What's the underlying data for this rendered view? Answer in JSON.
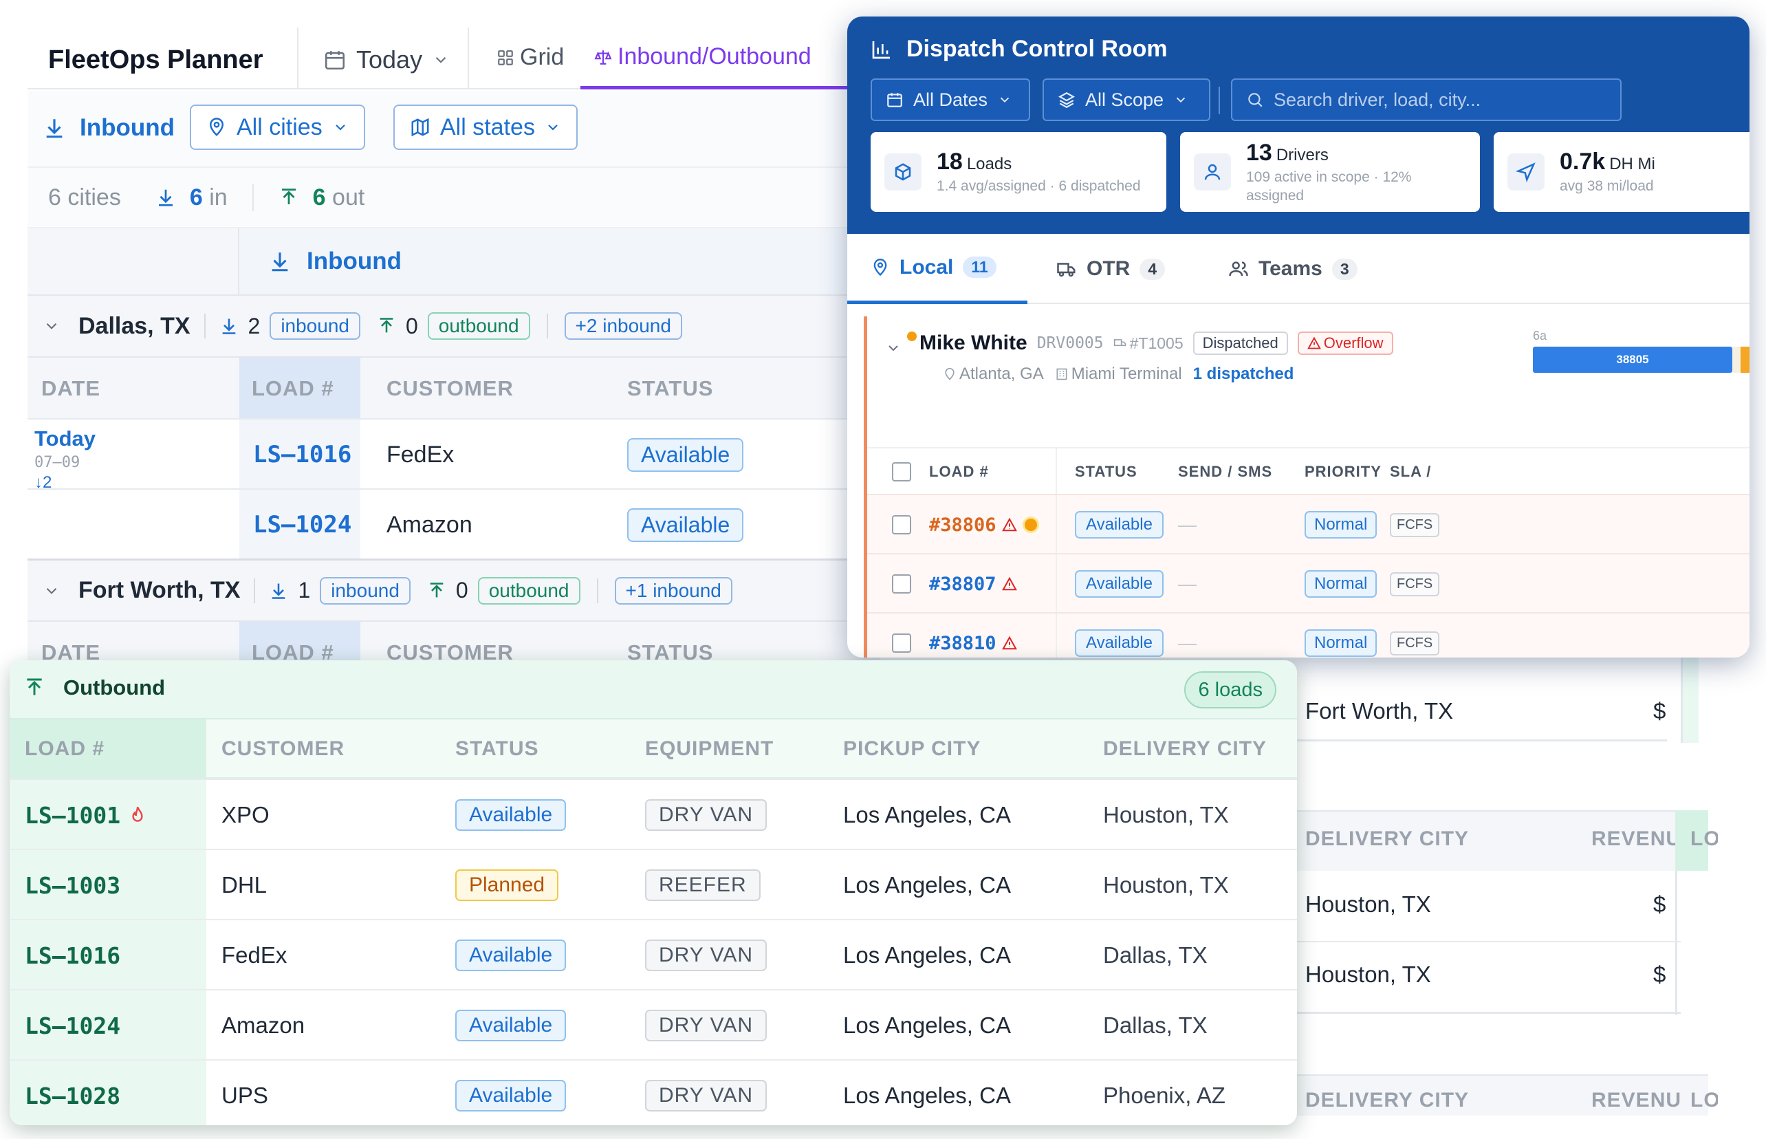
{
  "planner": {
    "title": "FleetOps Planner",
    "today_label": "Today",
    "grid_label": "Grid",
    "io_label": "Inbound/Outbound",
    "inbound_header": "Inbound",
    "filters": {
      "cities": "All cities",
      "states": "All states"
    },
    "summary": {
      "cities": "6 cities",
      "in_count": "6",
      "in_word": "in",
      "out_count": "6",
      "out_word": "out"
    },
    "band_label": "Inbound",
    "groups": [
      {
        "city": "Dallas, TX",
        "in_count": "2",
        "in_word": "inbound",
        "out_count": "0",
        "out_word": "outbound",
        "extra": "+2 inbound"
      },
      {
        "city": "Fort Worth, TX",
        "in_count": "1",
        "in_word": "inbound",
        "out_count": "0",
        "out_word": "outbound",
        "extra": "+1 inbound"
      }
    ],
    "columns": {
      "date": "DATE",
      "load": "LOAD #",
      "customer": "CUSTOMER",
      "status": "STATUS"
    },
    "date_cell": {
      "label": "Today",
      "date": "07–09",
      "count": "↓2"
    },
    "rows": [
      {
        "load": "LS–1016",
        "customer": "FedEx",
        "status": "Available"
      },
      {
        "load": "LS–1024",
        "customer": "Amazon",
        "status": "Available"
      }
    ],
    "right_partial": {
      "fort_worth": "Fort Worth, TX",
      "dollar": "$",
      "delivery_header": "DELIVERY CITY",
      "revenue_header": "REVENU",
      "lo_header": "LOA",
      "lo_header2": "LO",
      "houston1": "Houston, TX",
      "houston2": "Houston, TX"
    }
  },
  "dispatch": {
    "title": "Dispatch Control Room",
    "filters": {
      "dates": "All Dates",
      "scope": "All Scope",
      "search_placeholder": "Search driver, load, city..."
    },
    "stats": [
      {
        "value": "18",
        "unit": "Loads",
        "sub": "1.4 avg/assigned · 6 dispatched"
      },
      {
        "value": "13",
        "unit": "Drivers",
        "sub": "109 active in scope · 12% assigned"
      },
      {
        "value": "0.7k",
        "unit": "DH Mi",
        "sub": "avg 38 mi/load"
      }
    ],
    "tabs": [
      {
        "label": "Local",
        "count": "11"
      },
      {
        "label": "OTR",
        "count": "4"
      },
      {
        "label": "Teams",
        "count": "3"
      }
    ],
    "driver": {
      "name": "Mike White",
      "id": "DRV0005",
      "truck": "#T1005",
      "status_tag": "Dispatched",
      "overflow_tag": "Overflow",
      "origin": "Atlanta, GA",
      "terminal": "Miami Terminal",
      "dispatched": "1 dispatched",
      "timeline_start": "6a",
      "bar_label": "38805"
    },
    "columns": {
      "load": "LOAD #",
      "status": "STATUS",
      "send": "SEND / SMS",
      "priority": "PRIORITY",
      "sla": "SLA /"
    },
    "rows": [
      {
        "load": "#38806",
        "status": "Available",
        "send": "—",
        "priority": "Normal",
        "sla": "FCFS"
      },
      {
        "load": "#38807",
        "status": "Available",
        "send": "—",
        "priority": "Normal",
        "sla": "FCFS"
      },
      {
        "load": "#38810",
        "status": "Available",
        "send": "—",
        "priority": "Normal",
        "sla": "FCFS"
      }
    ]
  },
  "outbound": {
    "title": "Outbound",
    "count": "6 loads",
    "columns": {
      "load": "LOAD #",
      "customer": "CUSTOMER",
      "status": "STATUS",
      "equipment": "EQUIPMENT",
      "pickup": "PICKUP CITY",
      "delivery": "DELIVERY CITY"
    },
    "rows": [
      {
        "load": "LS–1001",
        "customer": "XPO",
        "status": "Available",
        "equipment": "DRY VAN",
        "pickup": "Los Angeles, CA",
        "delivery": "Houston, TX"
      },
      {
        "load": "LS–1003",
        "customer": "DHL",
        "status": "Planned",
        "equipment": "REEFER",
        "pickup": "Los Angeles, CA",
        "delivery": "Houston, TX"
      },
      {
        "load": "LS–1016",
        "customer": "FedEx",
        "status": "Available",
        "equipment": "DRY VAN",
        "pickup": "Los Angeles, CA",
        "delivery": "Dallas, TX"
      },
      {
        "load": "LS–1024",
        "customer": "Amazon",
        "status": "Available",
        "equipment": "DRY VAN",
        "pickup": "Los Angeles, CA",
        "delivery": "Dallas, TX"
      },
      {
        "load": "LS–1028",
        "customer": "UPS",
        "status": "Available",
        "equipment": "DRY VAN",
        "pickup": "Los Angeles, CA",
        "delivery": "Phoenix, AZ"
      }
    ]
  },
  "colors": {
    "primary_blue": "#1d6fd0",
    "header_blue": "#1652a4",
    "outbound_green": "#12845a",
    "accent_purple": "#7c3aed",
    "warning_orange": "#f08a5d"
  }
}
